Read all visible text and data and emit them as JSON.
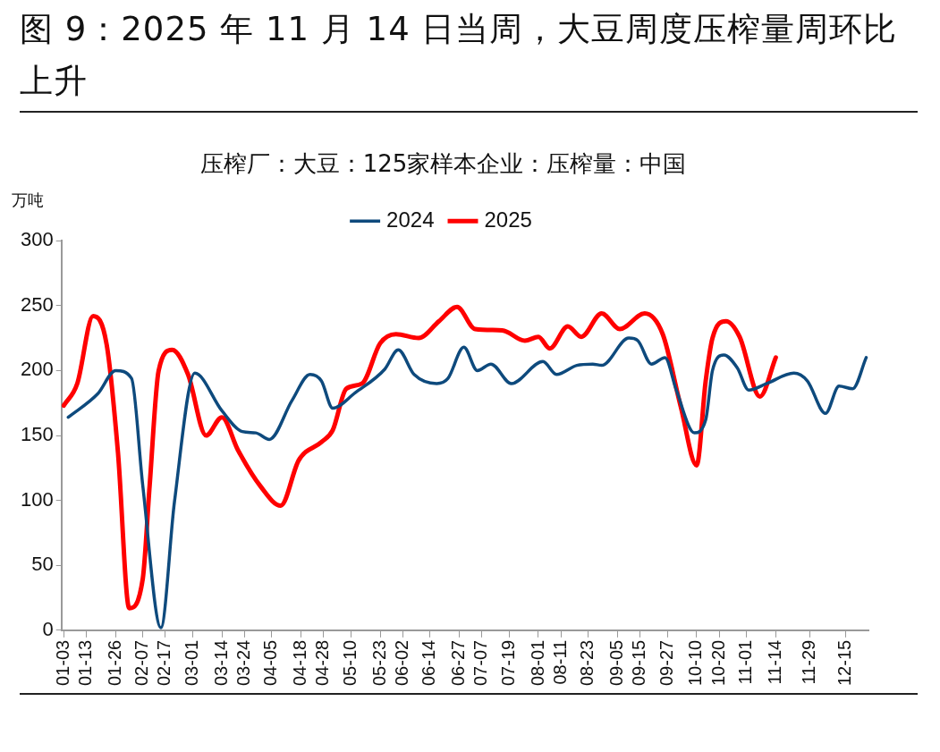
{
  "chart_data": {
    "type": "line",
    "title": "图 9：2025 年 11 月 14 日当周，大豆周度压榨量周环比上升",
    "subtitle": "压榨厂：大豆：125家样本企业：压榨量：中国",
    "ylabel": "万吨",
    "series": [
      {
        "name": "2024",
        "color": "#0e4a7d",
        "x": [
          "--01-05",
          "--01-18",
          "--01-26",
          "--02-02",
          "--02-07",
          "--02-15",
          "--02-21",
          "--03-02",
          "--03-14",
          "--03-23",
          "--03-29",
          "--04-04",
          "--04-14",
          "--04-22",
          "--04-27",
          "--05-02",
          "--05-12",
          "--05-25",
          "--05-31",
          "--06-07",
          "--06-17",
          "--06-22",
          "--06-29",
          "--07-05",
          "--07-11",
          "--07-20",
          "--08-03",
          "--08-09",
          "--08-18",
          "--08-25",
          "--08-29",
          "--09-10",
          "--09-14",
          "--09-20",
          "--09-26",
          "--10-01",
          "--10-09",
          "--10-14",
          "--10-17",
          "--10-22",
          "--10-28",
          "--11-02",
          "--11-10",
          "--11-22",
          "--11-28",
          "--12-06",
          "--12-12",
          "--12-18",
          "--12-24"
        ],
        "values": [
          164,
          182,
          200,
          194,
          111,
          2,
          99,
          198,
          169,
          153,
          152,
          147,
          177,
          197,
          192,
          171,
          183,
          201,
          216,
          197,
          190,
          194,
          218,
          200,
          205,
          190,
          207,
          197,
          204,
          205,
          204,
          225,
          223,
          205,
          210,
          185,
          152,
          162,
          200,
          212,
          202,
          185,
          190,
          198,
          192,
          167,
          188,
          186,
          210
        ]
      },
      {
        "name": "2025",
        "color": "#ff0000",
        "x": [
          "--01-03",
          "--01-09",
          "--01-16",
          "--01-22",
          "--01-27",
          "--02-01",
          "--02-07",
          "--02-10",
          "--02-14",
          "--02-20",
          "--02-27",
          "--03-07",
          "--03-14",
          "--03-21",
          "--03-31",
          "--04-09",
          "--04-17",
          "--04-27",
          "--05-02",
          "--05-08",
          "--05-15",
          "--05-23",
          "--05-30",
          "--06-09",
          "--06-18",
          "--06-26",
          "--07-04",
          "--07-16",
          "--07-26",
          "--08-01",
          "--08-06",
          "--08-14",
          "--08-20",
          "--08-29",
          "--09-06",
          "--09-17",
          "--09-25",
          "--10-03",
          "--10-10",
          "--10-14",
          "--10-17",
          "--10-23",
          "--10-29",
          "--11-07",
          "--11-14"
        ],
        "values": [
          173,
          190,
          242,
          220,
          137,
          17,
          40,
          111,
          200,
          216,
          197,
          150,
          164,
          139,
          111,
          96,
          131,
          145,
          154,
          186,
          190,
          221,
          228,
          225,
          238,
          249,
          232,
          231,
          223,
          226,
          217,
          234,
          226,
          244,
          232,
          244,
          228,
          172,
          127,
          192,
          225,
          238,
          226,
          180,
          210
        ]
      }
    ],
    "xlim": [
      "--01-02",
      "--12-25"
    ],
    "xticks": [
      {
        "value": "--01-03",
        "label": "01-03"
      },
      {
        "value": "--01-13",
        "label": "01-13"
      },
      {
        "value": "--01-26",
        "label": "01-26"
      },
      {
        "value": "--02-07",
        "label": "02-07"
      },
      {
        "value": "--02-17",
        "label": "02-17"
      },
      {
        "value": "--03-01",
        "label": "03-01"
      },
      {
        "value": "--03-14",
        "label": "03-14"
      },
      {
        "value": "--03-24",
        "label": "03-24"
      },
      {
        "value": "--04-05",
        "label": "04-05"
      },
      {
        "value": "--04-18",
        "label": "04-18"
      },
      {
        "value": "--04-28",
        "label": "04-28"
      },
      {
        "value": "--05-10",
        "label": "05-10"
      },
      {
        "value": "--05-23",
        "label": "05-23"
      },
      {
        "value": "--06-02",
        "label": "06-02"
      },
      {
        "value": "--06-14",
        "label": "06-14"
      },
      {
        "value": "--06-27",
        "label": "06-27"
      },
      {
        "value": "--07-07",
        "label": "07-07"
      },
      {
        "value": "--07-19",
        "label": "07-19"
      },
      {
        "value": "--08-01",
        "label": "08-01"
      },
      {
        "value": "--08-11",
        "label": "08-11"
      },
      {
        "value": "--08-23",
        "label": "08-23"
      },
      {
        "value": "--09-05",
        "label": "09-05"
      },
      {
        "value": "--09-15",
        "label": "09-15"
      },
      {
        "value": "--09-27",
        "label": "09-27"
      },
      {
        "value": "--10-10",
        "label": "10-10"
      },
      {
        "value": "--10-20",
        "label": "10-20"
      },
      {
        "value": "--11-01",
        "label": "11-01"
      },
      {
        "value": "--11-14",
        "label": "11-14"
      },
      {
        "value": "--11-29",
        "label": "11-29"
      },
      {
        "value": "--12-15",
        "label": "12-15"
      }
    ],
    "ylim": [
      0,
      300
    ],
    "yticks": [
      0,
      50,
      100,
      150,
      200,
      250,
      300
    ],
    "grid": false,
    "legend": "top",
    "marker": "none",
    "line_style": "solid"
  }
}
